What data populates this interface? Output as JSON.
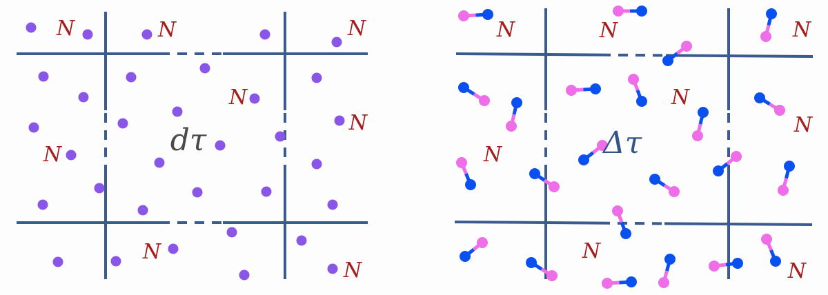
{
  "left_panel": {
    "center_label": "dτ",
    "cell_label": "N",
    "particle": "single-atom"
  },
  "right_panel": {
    "center_label": "Δτ",
    "cell_label": "N",
    "particle": "diatomic-molecule"
  },
  "colors": {
    "grid_line": "#3b5a8e",
    "atom": "#8a56e8",
    "molecule_pink": "#ee6ee8",
    "molecule_blue": "#0a4ff0",
    "cell_label": "#a51d1d",
    "left_center_label": "#4a4a4a",
    "right_center_label": "#34558a"
  }
}
